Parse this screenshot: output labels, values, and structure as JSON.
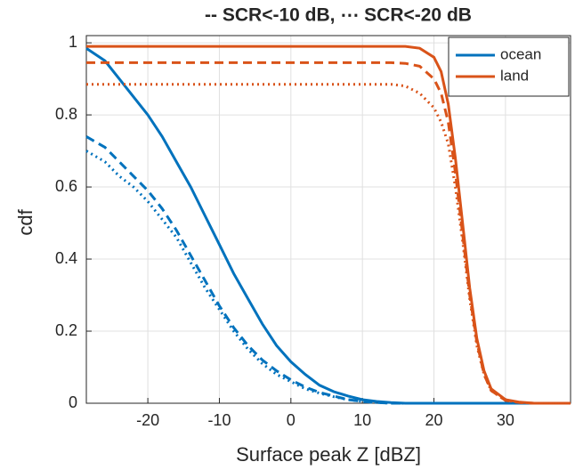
{
  "chart_data": {
    "type": "line",
    "title": "-- SCR<-10 dB, ⋯ SCR<-20 dB",
    "xlabel": "Surface peak Z [dBZ]",
    "ylabel": "cdf",
    "x": [
      -28.6,
      -26,
      -24,
      -22,
      -20,
      -18,
      -16,
      -14,
      -12,
      -10,
      -8,
      -6,
      -4,
      -2,
      0,
      2,
      4,
      6,
      8,
      10,
      12,
      14,
      16,
      18,
      20,
      21,
      22,
      23,
      24,
      25,
      26,
      27,
      28,
      30,
      32,
      34,
      39.1
    ],
    "series": [
      {
        "name": "ocean",
        "color": "#0072BD",
        "dash": "solid",
        "values": [
          0.985,
          0.95,
          0.9,
          0.85,
          0.8,
          0.74,
          0.67,
          0.6,
          0.52,
          0.44,
          0.36,
          0.29,
          0.22,
          0.16,
          0.115,
          0.08,
          0.05,
          0.032,
          0.02,
          0.01,
          0.005,
          0.002,
          0,
          0,
          0,
          0,
          0,
          0,
          0,
          0,
          0,
          0,
          0,
          0,
          0,
          0,
          0
        ]
      },
      {
        "color": "#0072BD",
        "dash": "dashed",
        "values": [
          0.74,
          0.71,
          0.67,
          0.63,
          0.59,
          0.54,
          0.48,
          0.41,
          0.34,
          0.27,
          0.21,
          0.16,
          0.12,
          0.09,
          0.065,
          0.045,
          0.03,
          0.02,
          0.01,
          0.005,
          0.002,
          0,
          0,
          0,
          0,
          0,
          0,
          0,
          0,
          0,
          0,
          0,
          0,
          0,
          0,
          0,
          0
        ]
      },
      {
        "color": "#0072BD",
        "dash": "dotted",
        "values": [
          0.7,
          0.67,
          0.63,
          0.6,
          0.56,
          0.51,
          0.46,
          0.39,
          0.32,
          0.26,
          0.2,
          0.15,
          0.11,
          0.08,
          0.06,
          0.04,
          0.028,
          0.018,
          0.01,
          0.005,
          0.002,
          0,
          0,
          0,
          0,
          0,
          0,
          0,
          0,
          0,
          0,
          0,
          0,
          0,
          0,
          0,
          0
        ]
      },
      {
        "name": "land",
        "color": "#D95319",
        "dash": "solid",
        "values": [
          0.99,
          0.99,
          0.99,
          0.99,
          0.99,
          0.99,
          0.99,
          0.99,
          0.99,
          0.99,
          0.99,
          0.99,
          0.99,
          0.99,
          0.99,
          0.99,
          0.99,
          0.99,
          0.99,
          0.99,
          0.99,
          0.99,
          0.99,
          0.985,
          0.96,
          0.92,
          0.83,
          0.68,
          0.5,
          0.32,
          0.18,
          0.09,
          0.04,
          0.01,
          0.003,
          0,
          0
        ]
      },
      {
        "color": "#D95319",
        "dash": "dashed",
        "values": [
          0.945,
          0.945,
          0.945,
          0.945,
          0.945,
          0.945,
          0.945,
          0.945,
          0.945,
          0.945,
          0.945,
          0.945,
          0.945,
          0.945,
          0.945,
          0.945,
          0.945,
          0.945,
          0.945,
          0.945,
          0.945,
          0.945,
          0.943,
          0.935,
          0.9,
          0.86,
          0.78,
          0.64,
          0.47,
          0.3,
          0.17,
          0.08,
          0.035,
          0.008,
          0.002,
          0,
          0
        ]
      },
      {
        "color": "#D95319",
        "dash": "dotted",
        "values": [
          0.885,
          0.885,
          0.885,
          0.885,
          0.885,
          0.885,
          0.885,
          0.885,
          0.885,
          0.885,
          0.885,
          0.885,
          0.885,
          0.885,
          0.885,
          0.885,
          0.885,
          0.885,
          0.885,
          0.885,
          0.885,
          0.885,
          0.88,
          0.86,
          0.82,
          0.78,
          0.72,
          0.6,
          0.45,
          0.29,
          0.16,
          0.08,
          0.035,
          0.008,
          0.002,
          0,
          0
        ]
      }
    ],
    "xlim": [
      -28.6,
      39.1
    ],
    "ylim": [
      0,
      1.02
    ],
    "xticks": [
      -20,
      -10,
      0,
      10,
      20,
      30
    ],
    "yticks": [
      0,
      0.2,
      0.4,
      0.6,
      0.8,
      1
    ],
    "grid": true,
    "legend": "northeast"
  }
}
